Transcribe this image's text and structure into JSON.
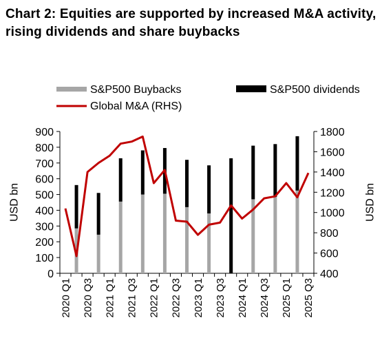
{
  "title": "Chart 2: Equities are supported by increased M&A activity, rising dividends and share buybacks",
  "chart_data": {
    "type": "bar",
    "stacked": true,
    "ylabel": "USD bn",
    "ylabel_right": "USD bn",
    "ylim": [
      0,
      900
    ],
    "yticks": [
      0,
      100,
      200,
      300,
      400,
      500,
      600,
      700,
      800,
      900
    ],
    "ylim_right": [
      400,
      1800
    ],
    "yticks_right": [
      400,
      600,
      800,
      1000,
      1200,
      1400,
      1600,
      1800
    ],
    "x_tick_labels": [
      "2020 Q1",
      "2020 Q3",
      "2021 Q1",
      "2021 Q3",
      "2022 Q1",
      "2022 Q3",
      "2023 Q1",
      "2023 Q3",
      "2024 Q1",
      "2024 Q3",
      "2025 Q1",
      "2025 Q3"
    ],
    "categories": [
      "2020 Q1",
      "2020 Q2",
      "2020 Q3",
      "2020 Q4",
      "2021 Q1",
      "2021 Q2",
      "2021 Q3",
      "2021 Q4",
      "2022 Q1",
      "2022 Q2",
      "2022 Q3",
      "2022 Q4",
      "2023 Q1",
      "2023 Q2",
      "2023 Q3",
      "2023 Q4",
      "2024 Q1",
      "2024 Q2",
      "2024 Q3",
      "2024 Q4",
      "2025 Q1",
      "2025 Q2",
      "2025 Q3"
    ],
    "legend": {
      "placement": "top"
    },
    "series": [
      {
        "name": "S&P500 Buybacks",
        "kind": "bar",
        "axis": "left",
        "color": "#a6a6a6",
        "values": [
          null,
          285,
          null,
          245,
          null,
          455,
          null,
          500,
          null,
          505,
          null,
          420,
          null,
          380,
          null,
          null,
          null,
          470,
          null,
          485,
          null,
          525,
          null
        ]
      },
      {
        "name": "S&P500 dividends",
        "kind": "bar",
        "axis": "left",
        "color": "#000000",
        "values": [
          null,
          275,
          null,
          265,
          null,
          275,
          null,
          280,
          null,
          290,
          null,
          300,
          null,
          305,
          null,
          730,
          null,
          340,
          null,
          335,
          null,
          345,
          null
        ]
      },
      {
        "name": "Global M&A (RHS)",
        "kind": "line",
        "axis": "right",
        "color": "#c00000",
        "values": [
          1040,
          570,
          1400,
          1490,
          1560,
          1680,
          1700,
          1750,
          1290,
          1420,
          920,
          910,
          780,
          880,
          900,
          1070,
          940,
          1030,
          1140,
          1160,
          1290,
          1150,
          1390
        ]
      }
    ]
  }
}
